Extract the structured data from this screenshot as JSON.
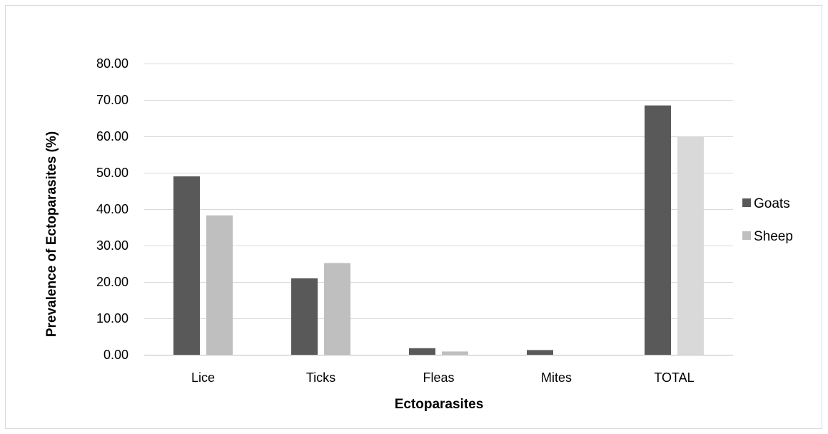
{
  "chart_data": {
    "type": "bar",
    "title": "",
    "xlabel": "Ectoparasites",
    "ylabel": "Prevalence of Ectoparasites (%)",
    "categories": [
      "Lice",
      "Ticks",
      "Fleas",
      "Mites",
      "TOTAL"
    ],
    "series": [
      {
        "name": "Goats",
        "color": "#595959",
        "values": [
          49.0,
          21.0,
          1.8,
          1.3,
          68.5
        ]
      },
      {
        "name": "Sheep",
        "color": "#bfbfbf",
        "values": [
          38.3,
          25.2,
          0.9,
          0.0,
          60.0
        ]
      }
    ],
    "total_sheep_color": "#d9d9d9",
    "ylim": [
      0,
      80
    ],
    "yticks": [
      "0.00",
      "10.00",
      "20.00",
      "30.00",
      "40.00",
      "50.00",
      "60.00",
      "70.00",
      "80.00"
    ],
    "grid": true,
    "legend_position": "right",
    "gridline_color": "#d9d9d9",
    "axis_color": "#bfbfbf"
  }
}
